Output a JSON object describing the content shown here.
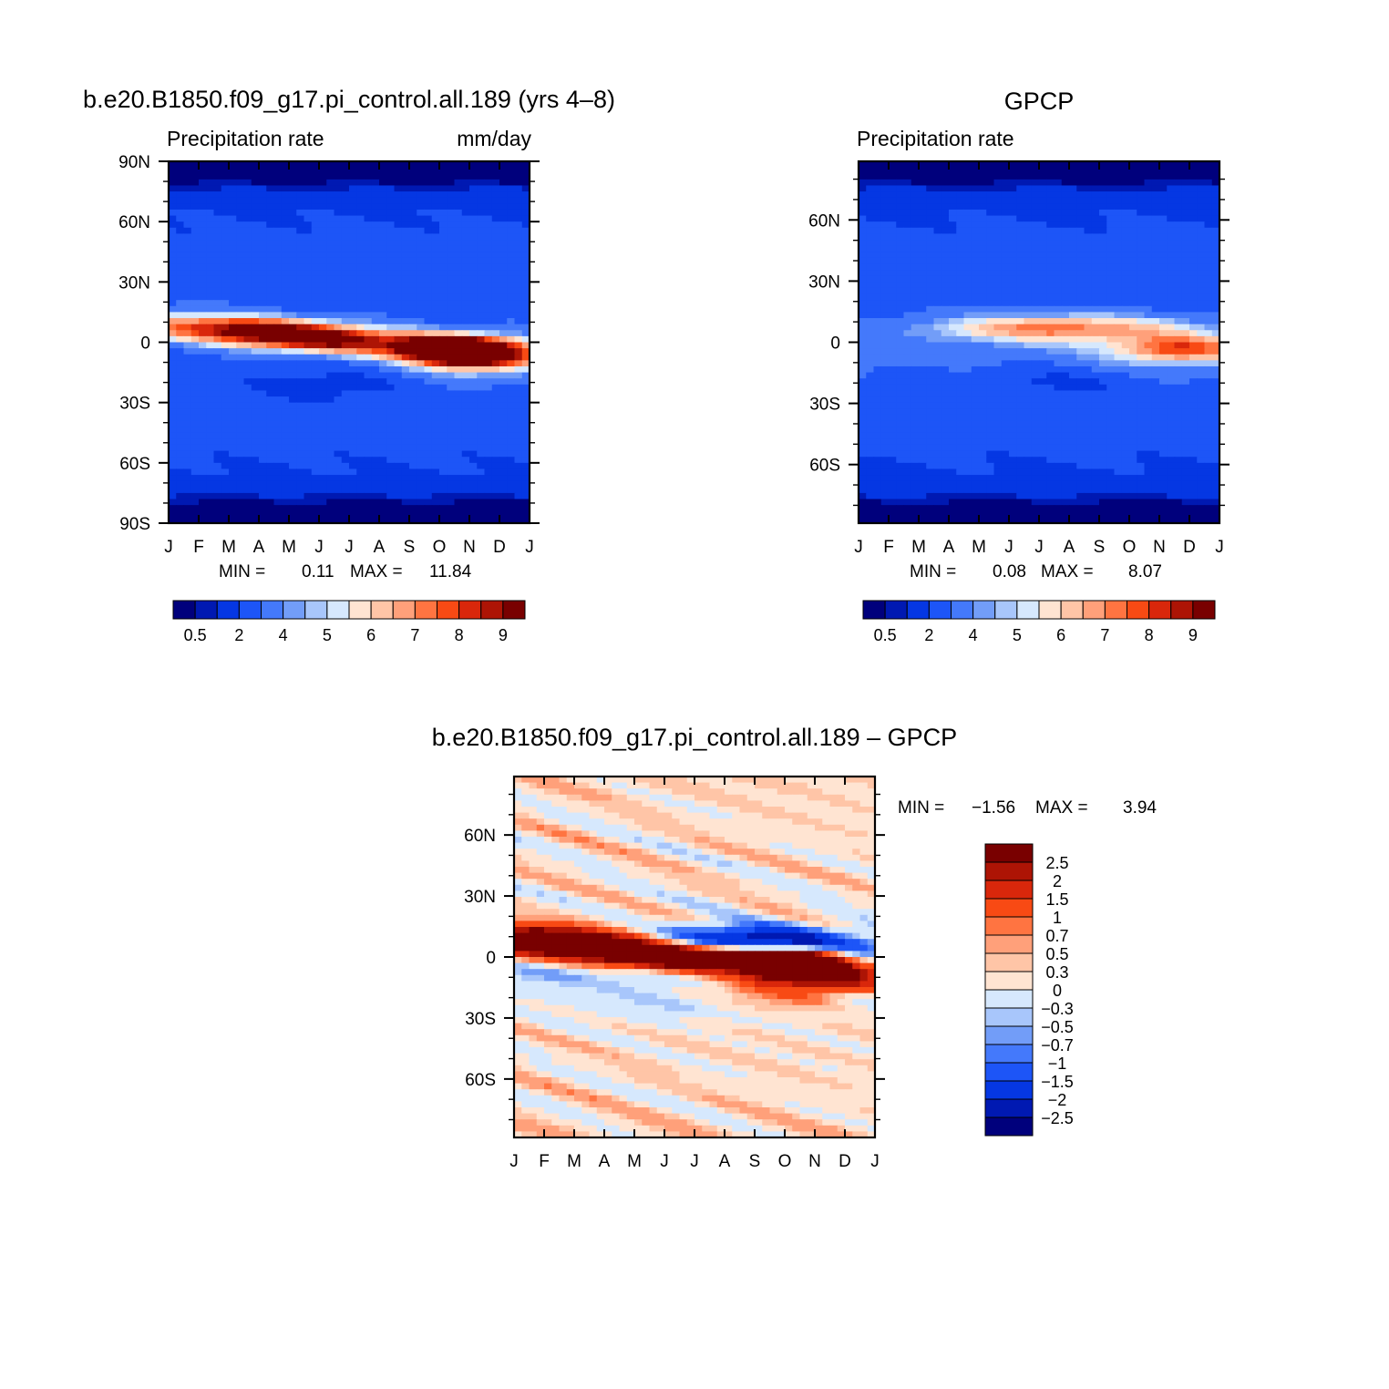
{
  "palettes": {
    "prec": [
      "#00007c",
      "#0019b2",
      "#0537e3",
      "#1d55f7",
      "#4479fb",
      "#729df8",
      "#a8c6fb",
      "#d6e8fd",
      "#ffe4d2",
      "#ffc5a7",
      "#ffa07a",
      "#ff7441",
      "#f84a14",
      "#d9270b",
      "#ad1405",
      "#790000"
    ],
    "diff": [
      "#790000",
      "#ad1405",
      "#d9270b",
      "#f84a14",
      "#ff7441",
      "#ffa07a",
      "#ffc5a7",
      "#ffe4d2",
      "#d6e8fd",
      "#a8c6fb",
      "#729df8",
      "#4479fb",
      "#1d55f7",
      "#0537e3",
      "#0019b2",
      "#00007c"
    ]
  },
  "chart_data": [
    {
      "type": "heatmap",
      "title": "b.e20.B1850.f09_g17.pi_control.all.189 (yrs 4–8)",
      "left_label": "Precipitation  rate",
      "right_label": "mm/day",
      "x_ticks": [
        "J",
        "F",
        "M",
        "A",
        "M",
        "J",
        "J",
        "A",
        "S",
        "O",
        "N",
        "D",
        "J"
      ],
      "y_ticks": [
        {
          "lat": 90,
          "label": "90N"
        },
        {
          "lat": 60,
          "label": "60N"
        },
        {
          "lat": 30,
          "label": "30N"
        },
        {
          "lat": 0,
          "label": "0"
        },
        {
          "lat": -30,
          "label": "30S"
        },
        {
          "lat": -60,
          "label": "60S"
        },
        {
          "lat": -90,
          "label": "90S"
        }
      ],
      "ylim": [
        -90,
        90
      ],
      "min_label": "MIN =",
      "min_value": "0.11",
      "max_label": "MAX =",
      "max_value": "11.84",
      "colorbar_labels": [
        "0.5",
        "2",
        "4",
        "5",
        "6",
        "7",
        "8",
        "9"
      ]
    },
    {
      "type": "heatmap",
      "title": "GPCP",
      "left_label": "Precipitation  rate",
      "x_ticks": [
        "J",
        "F",
        "M",
        "A",
        "M",
        "J",
        "J",
        "A",
        "S",
        "O",
        "N",
        "D",
        "J"
      ],
      "y_ticks": [
        {
          "lat": 60,
          "label": "60N"
        },
        {
          "lat": 30,
          "label": "30N"
        },
        {
          "lat": 0,
          "label": "0"
        },
        {
          "lat": -30,
          "label": "30S"
        },
        {
          "lat": -60,
          "label": "60S"
        }
      ],
      "ylim": [
        -88.75,
        88.75
      ],
      "min_label": "MIN =",
      "min_value": "0.08",
      "max_label": "MAX =",
      "max_value": "8.07",
      "colorbar_labels": [
        "0.5",
        "2",
        "4",
        "5",
        "6",
        "7",
        "8",
        "9"
      ]
    },
    {
      "type": "heatmap",
      "title": "b.e20.B1850.f09_g17.pi_control.all.189  –  GPCP",
      "x_ticks": [
        "J",
        "F",
        "M",
        "A",
        "M",
        "J",
        "J",
        "A",
        "S",
        "O",
        "N",
        "D",
        "J"
      ],
      "y_ticks": [
        {
          "lat": 60,
          "label": "60N"
        },
        {
          "lat": 30,
          "label": "30N"
        },
        {
          "lat": 0,
          "label": "0"
        },
        {
          "lat": -30,
          "label": "30S"
        },
        {
          "lat": -60,
          "label": "60S"
        }
      ],
      "ylim": [
        -88.75,
        88.75
      ],
      "min_label": "MIN =",
      "min_value": "−1.56",
      "max_label": "MAX =",
      "max_value": "3.94",
      "colorbar_labels": [
        "2.5",
        "2",
        "1.5",
        "1",
        "0.7",
        "0.5",
        "0.3",
        "0",
        "−0.3",
        "−0.5",
        "−0.7",
        "−1",
        "−1.5",
        "−2",
        "−2.5"
      ]
    }
  ]
}
